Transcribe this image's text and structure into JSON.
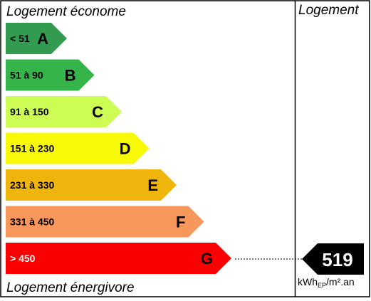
{
  "label": {
    "top_caption": "Logement économe",
    "bottom_caption": "Logement énergivore",
    "column_header": "Logement",
    "classes": [
      {
        "letter": "A",
        "range": "< 51",
        "color": "#329b50",
        "range_color": "#000000"
      },
      {
        "letter": "B",
        "range": "51 à 90",
        "color": "#35b44a",
        "range_color": "#000000"
      },
      {
        "letter": "C",
        "range": "91 à 150",
        "color": "#cdfc55",
        "range_color": "#000000"
      },
      {
        "letter": "D",
        "range": "151 à 230",
        "color": "#f8fa05",
        "range_color": "#000000"
      },
      {
        "letter": "E",
        "range": "231 à 330",
        "color": "#f0b50d",
        "range_color": "#000000"
      },
      {
        "letter": "F",
        "range": "331 à 450",
        "color": "#f8975a",
        "range_color": "#000000"
      },
      {
        "letter": "G",
        "range": "> 450",
        "color": "#fa0000",
        "range_color": "#ffffff"
      }
    ],
    "value": "519",
    "active_class": "G",
    "unit": {
      "prefix": "kWh",
      "subscript": "EP",
      "suffix": "/m².an"
    }
  }
}
